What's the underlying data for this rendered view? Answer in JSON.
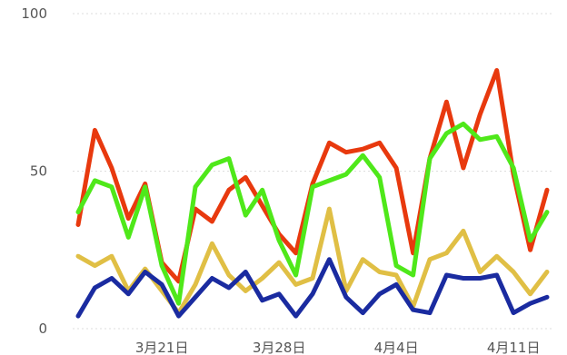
{
  "chart_data": {
    "type": "line",
    "title": "",
    "xlabel": "",
    "ylabel": "",
    "ylim": [
      0,
      100
    ],
    "yticks": [
      0,
      50,
      100
    ],
    "grid": true,
    "x_tick_labels": [
      {
        "label": "3月21日",
        "index": 5
      },
      {
        "label": "3月28日",
        "index": 12
      },
      {
        "label": "4月4日",
        "index": 19
      },
      {
        "label": "4月11日",
        "index": 26
      }
    ],
    "num_points": 29,
    "series": [
      {
        "color": "#e8390e",
        "values": [
          33,
          63,
          51,
          35,
          46,
          21,
          15,
          38,
          34,
          44,
          48,
          39,
          30,
          24,
          46,
          59,
          56,
          57,
          59,
          51,
          24,
          54,
          72,
          51,
          68,
          82,
          49,
          25,
          44
        ]
      },
      {
        "color": "#4fe81a",
        "values": [
          37,
          47,
          45,
          29,
          45,
          20,
          8,
          45,
          52,
          54,
          36,
          44,
          28,
          17,
          45,
          47,
          49,
          55,
          48,
          20,
          17,
          54,
          62,
          65,
          60,
          61,
          51,
          28,
          37
        ]
      },
      {
        "color": "#e0bf45",
        "values": [
          23,
          20,
          23,
          12,
          19,
          12,
          5,
          14,
          27,
          17,
          12,
          16,
          21,
          14,
          16,
          38,
          12,
          22,
          18,
          17,
          7,
          22,
          24,
          31,
          18,
          23,
          18,
          11,
          18
        ]
      },
      {
        "color": "#1a2ba0",
        "values": [
          4,
          13,
          16,
          11,
          18,
          14,
          4,
          10,
          16,
          13,
          18,
          9,
          11,
          4,
          11,
          22,
          10,
          5,
          11,
          14,
          6,
          5,
          17,
          16,
          16,
          17,
          5,
          8,
          10
        ]
      }
    ]
  }
}
